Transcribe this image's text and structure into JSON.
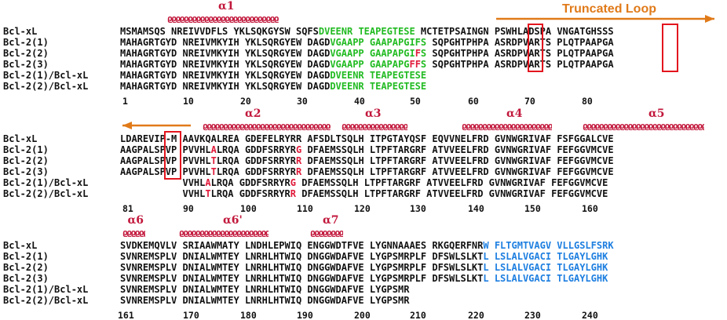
{
  "truncated_loop_label": "Truncated Loop",
  "colors": {
    "helix": "#c2183c",
    "loop_arrow": "#e07a19",
    "highlight_green": "#22bb22",
    "highlight_red": "#e01a3a",
    "highlight_blue": "#1e7fe0",
    "box": "#e3151e"
  },
  "blocks": [
    {
      "helices": [
        {
          "label": "α1"
        }
      ],
      "rows": [
        {
          "label": "Bcl-xL",
          "segments": [
            [
              "MSMAMSQS NREIVVDFLS YKLSQKGYSW SQFS",
              ""
            ],
            [
              "DVEENR TEAPEGTESE",
              "g"
            ],
            [
              " MCTETPSAINGN PSWHLADSPA VNGATGHSSS",
              ""
            ]
          ]
        },
        {
          "label": "Bcl-2(1)",
          "segments": [
            [
              "MAHAGRTGYD NREIVMKYIH YKLSQRGYEW DAGD",
              ""
            ],
            [
              "VGAAPP GAAPAPGIFS",
              "g"
            ],
            [
              " SQPGHTPHPA ASRDPVARTS PLQTPAAPGA",
              ""
            ]
          ]
        },
        {
          "label": "Bcl-2(2)",
          "segments": [
            [
              "MAHAGRTGYD NREIVMKYIH YKLSQRGYEW DAGD",
              ""
            ],
            [
              "VGAAPP GAAPAPGI",
              "g"
            ],
            [
              "F",
              "r"
            ],
            [
              "S",
              "g"
            ],
            [
              " SQPGHTPHPA ASRDPVARTS PLQTPAAPGA",
              ""
            ]
          ]
        },
        {
          "label": "Bcl-2(3)",
          "segments": [
            [
              "MAHAGRTGYD NREIVMKYIH YKLSQRGYEW DAGD",
              ""
            ],
            [
              "VGAAPP GAAPAPG",
              "g"
            ],
            [
              "FF",
              "r"
            ],
            [
              "S",
              "g"
            ],
            [
              " SQPGHTPHPA ASRDPVARTS PLQTPAAPGA",
              ""
            ]
          ]
        },
        {
          "label": "Bcl-2(1)/Bcl-xL",
          "segments": [
            [
              "MAHAGRTGYD NREIVMKYIH YKLSQRGYEW DAGD",
              ""
            ],
            [
              "DVEENR TEAPEGTESE",
              "g"
            ]
          ]
        },
        {
          "label": "Bcl-2(2)/Bcl-xL",
          "segments": [
            [
              "MAHAGRTGYD NREIVMKYIH YKLSQRGYEW DAGD",
              ""
            ],
            [
              "DVEENR TEAPEGTESE",
              "g"
            ]
          ]
        }
      ],
      "numbers": [
        "1",
        "10",
        "20",
        "30",
        "40",
        "50",
        "60",
        "70",
        "80"
      ]
    },
    {
      "helices": [
        {
          "label": "α2"
        },
        {
          "label": "α3"
        },
        {
          "label": "α4"
        },
        {
          "label": "α5"
        }
      ],
      "rows": [
        {
          "label": "Bcl-xL",
          "segments": [
            [
              "LDAREVIP-M AAVKQALREA GDEFELRYRR AFSDLTSQLH ITPGTAYQSF EQVVNELFRD GVNWGRIVAF FSFGGALCVE",
              ""
            ]
          ]
        },
        {
          "label": "Bcl-2(1)",
          "segments": [
            [
              "AAGPALSPVP PVVHL",
              ""
            ],
            [
              "A",
              "r"
            ],
            [
              "LRQA GDDFSRRYR",
              ""
            ],
            [
              "G",
              "r"
            ],
            [
              " DFAEMSSQLH LTPFTARGRF ATVVEELFRD GVNWGRIVAF FEFGGVMCVE",
              ""
            ]
          ]
        },
        {
          "label": "Bcl-2(2)",
          "segments": [
            [
              "AAGPALSPVP PVVHL",
              ""
            ],
            [
              "T",
              "r"
            ],
            [
              "LRQA GDDFSRRYR",
              ""
            ],
            [
              "R",
              "r"
            ],
            [
              " DFAEMSSQLH LTPFTARGRF ATVVEELFRD GVNWGRIVAF FEFGGVMCVE",
              ""
            ]
          ]
        },
        {
          "label": "Bcl-2(3)",
          "segments": [
            [
              "AAGPALSPVP PVVHL",
              ""
            ],
            [
              "T",
              "r"
            ],
            [
              "LRQA GDDFSRRYR",
              ""
            ],
            [
              "R",
              "r"
            ],
            [
              " DFAEMSSQLH LTPFTARGRF ATVVEELFRD GVNWGRIVAF FEFGGVMCVE",
              ""
            ]
          ]
        },
        {
          "label": "Bcl-2(1)/Bcl-xL",
          "segments": [
            [
              "           VVHL",
              ""
            ],
            [
              "A",
              "r"
            ],
            [
              "LRQA GDDFSRRYR",
              ""
            ],
            [
              "G",
              "r"
            ],
            [
              " DFAEMSSQLH LTPFTARGRF ATVVEELFRD GVNWGRIVAF FEFGGVMCVE",
              ""
            ]
          ]
        },
        {
          "label": "Bcl-2(2)/Bcl-xL",
          "segments": [
            [
              "           VVHL",
              ""
            ],
            [
              "T",
              "r"
            ],
            [
              "LRQA GDDFSRRYR",
              ""
            ],
            [
              "R",
              "r"
            ],
            [
              " DFAEMSSQLH LTPFTARGRF ATVVEELFRD GVNWGRIVAF FEFGGVMCVE",
              ""
            ]
          ]
        }
      ],
      "numbers": [
        "81",
        "90",
        "100",
        "110",
        "120",
        "130",
        "140",
        "150",
        "160"
      ]
    },
    {
      "helices": [
        {
          "label": "α6"
        },
        {
          "label": "α6'"
        },
        {
          "label": "α7"
        }
      ],
      "rows": [
        {
          "label": "Bcl-xL",
          "segments": [
            [
              "SVDKEMQVLV SRIAAWMATY LNDHLEPWIQ ENGGWDTFVE LYGNNAAAES RKGQERFNR",
              ""
            ],
            [
              "W FLTGMTVAGV VLLGSLFSRK",
              "b"
            ]
          ]
        },
        {
          "label": "Bcl-2(1)",
          "segments": [
            [
              "SVNREMSPLV DNIALWMTEY LNRHLHTWIQ DNGGWDAFVE LYGPSMRPLF DFSWLSLKT",
              ""
            ],
            [
              "L LSLALVGACI TLGAYLGHK",
              "b"
            ]
          ]
        },
        {
          "label": "Bcl-2(2)",
          "segments": [
            [
              "SVNREMSPLV DNIALWMTEY LNRHLHTWIQ DNGGWDAFVE LYGPSMRPLF DFSWLSLKT",
              ""
            ],
            [
              "L LSLALVGACI TLGAYLGHK",
              "b"
            ]
          ]
        },
        {
          "label": "Bcl-2(3)",
          "segments": [
            [
              "SVNREMSPLV DNIALWMTEY LNRHLHTWIQ DNGGWDAFVE LYGPSMRPLF DFSWLSLKT",
              ""
            ],
            [
              "L LSLALVGACI TLGAYLGHK",
              "b"
            ]
          ]
        },
        {
          "label": "Bcl-2(1)/Bcl-xL",
          "segments": [
            [
              "SVNREMSPLV DNIALWMTEY LNRHLHTWIQ DNGGWDAFVE LYGPSMR",
              ""
            ]
          ]
        },
        {
          "label": "Bcl-2(2)/Bcl-xL",
          "segments": [
            [
              "SVNREMSPLV DNIALWMTEY LNRHLHTWIQ DNGGWDAFVE LYGPSMR",
              ""
            ]
          ]
        }
      ],
      "numbers": [
        "161",
        "170",
        "180",
        "190",
        "200",
        "210",
        "220",
        "230",
        "240"
      ]
    }
  ]
}
